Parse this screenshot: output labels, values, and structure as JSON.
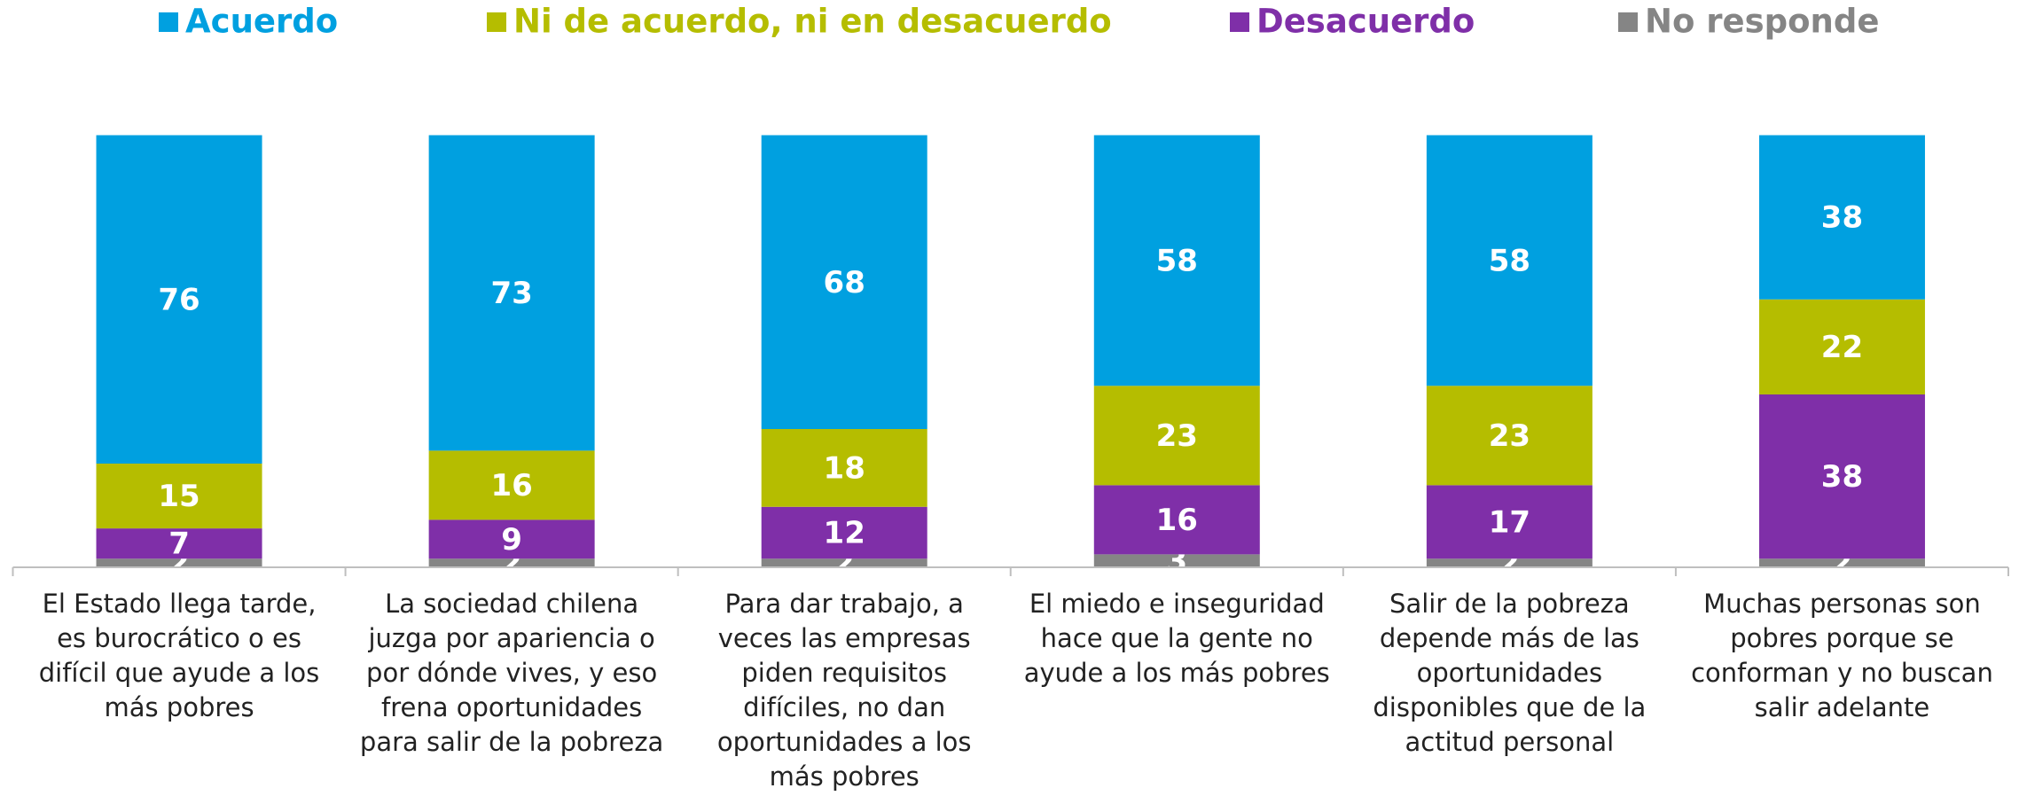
{
  "chart_data": {
    "type": "stacked_bar",
    "categories": [
      "El Estado llega tarde, es burocrático o es difícil que ayude a los más pobres",
      "La sociedad chilena juzga por apariencia o por dónde vives, y eso frena oportunidades para salir de la pobreza",
      "Para dar trabajo, a veces las empresas piden requisitos difíciles, no dan oportunidades a los más pobres",
      "El miedo e inseguridad hace que la gente no ayude a los más pobres",
      "Salir de la pobreza depende más de las oportunidades disponibles que de la actitud personal",
      "Muchas personas son pobres porque se conforman y no buscan salir adelante"
    ],
    "series": [
      {
        "name": "No responde",
        "color": "#858585",
        "values": [
          2,
          2,
          2,
          3,
          2,
          2
        ]
      },
      {
        "name": "Desacuerdo",
        "color": "#7f2fa8",
        "values": [
          7,
          9,
          12,
          16,
          17,
          38
        ]
      },
      {
        "name": "Ni de acuerdo, ni en desacuerdo",
        "color": "#b5bd00",
        "values": [
          15,
          16,
          18,
          23,
          23,
          22
        ]
      },
      {
        "name": "Acuerdo",
        "color": "#00a0e0",
        "values": [
          76,
          73,
          68,
          58,
          58,
          38
        ]
      }
    ],
    "legend_order": [
      3,
      2,
      1,
      0
    ],
    "ylim": [
      0,
      100
    ],
    "legend": "top"
  }
}
